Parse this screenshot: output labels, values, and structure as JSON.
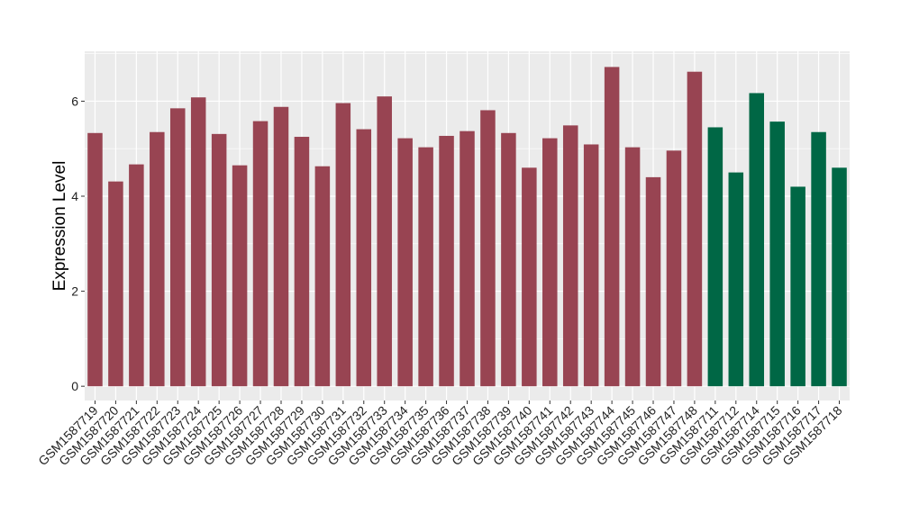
{
  "chart_data": {
    "type": "bar",
    "ylabel": "Expression Level",
    "xlabel": "",
    "ylim": [
      -0.3,
      7.05
    ],
    "yticks": [
      0,
      2,
      4,
      6
    ],
    "grid": true,
    "colors": {
      "group1": "#984452",
      "group2": "#006745",
      "panel": "#ebebeb",
      "grid": "#ffffff"
    },
    "categories": [
      "GSM1587719",
      "GSM1587720",
      "GSM1587721",
      "GSM1587722",
      "GSM1587723",
      "GSM1587724",
      "GSM1587725",
      "GSM1587726",
      "GSM1587727",
      "GSM1587728",
      "GSM1587729",
      "GSM1587730",
      "GSM1587731",
      "GSM1587732",
      "GSM1587733",
      "GSM1587734",
      "GSM1587735",
      "GSM1587736",
      "GSM1587737",
      "GSM1587738",
      "GSM1587739",
      "GSM1587740",
      "GSM1587741",
      "GSM1587742",
      "GSM1587743",
      "GSM1587744",
      "GSM1587745",
      "GSM1587746",
      "GSM1587747",
      "GSM1587748",
      "GSM1587711",
      "GSM1587712",
      "GSM1587714",
      "GSM1587715",
      "GSM1587716",
      "GSM1587717",
      "GSM1587718"
    ],
    "values": [
      5.33,
      4.31,
      4.67,
      5.35,
      5.85,
      6.08,
      5.31,
      4.65,
      5.58,
      5.88,
      5.25,
      4.63,
      5.96,
      5.41,
      6.1,
      5.22,
      5.03,
      5.27,
      5.37,
      5.81,
      5.33,
      4.6,
      5.22,
      5.49,
      5.09,
      6.72,
      5.03,
      4.4,
      4.96,
      6.62,
      5.45,
      4.5,
      6.17,
      5.57,
      4.2,
      5.35,
      4.6
    ],
    "groups": [
      1,
      1,
      1,
      1,
      1,
      1,
      1,
      1,
      1,
      1,
      1,
      1,
      1,
      1,
      1,
      1,
      1,
      1,
      1,
      1,
      1,
      1,
      1,
      1,
      1,
      1,
      1,
      1,
      1,
      1,
      2,
      2,
      2,
      2,
      2,
      2,
      2
    ]
  }
}
